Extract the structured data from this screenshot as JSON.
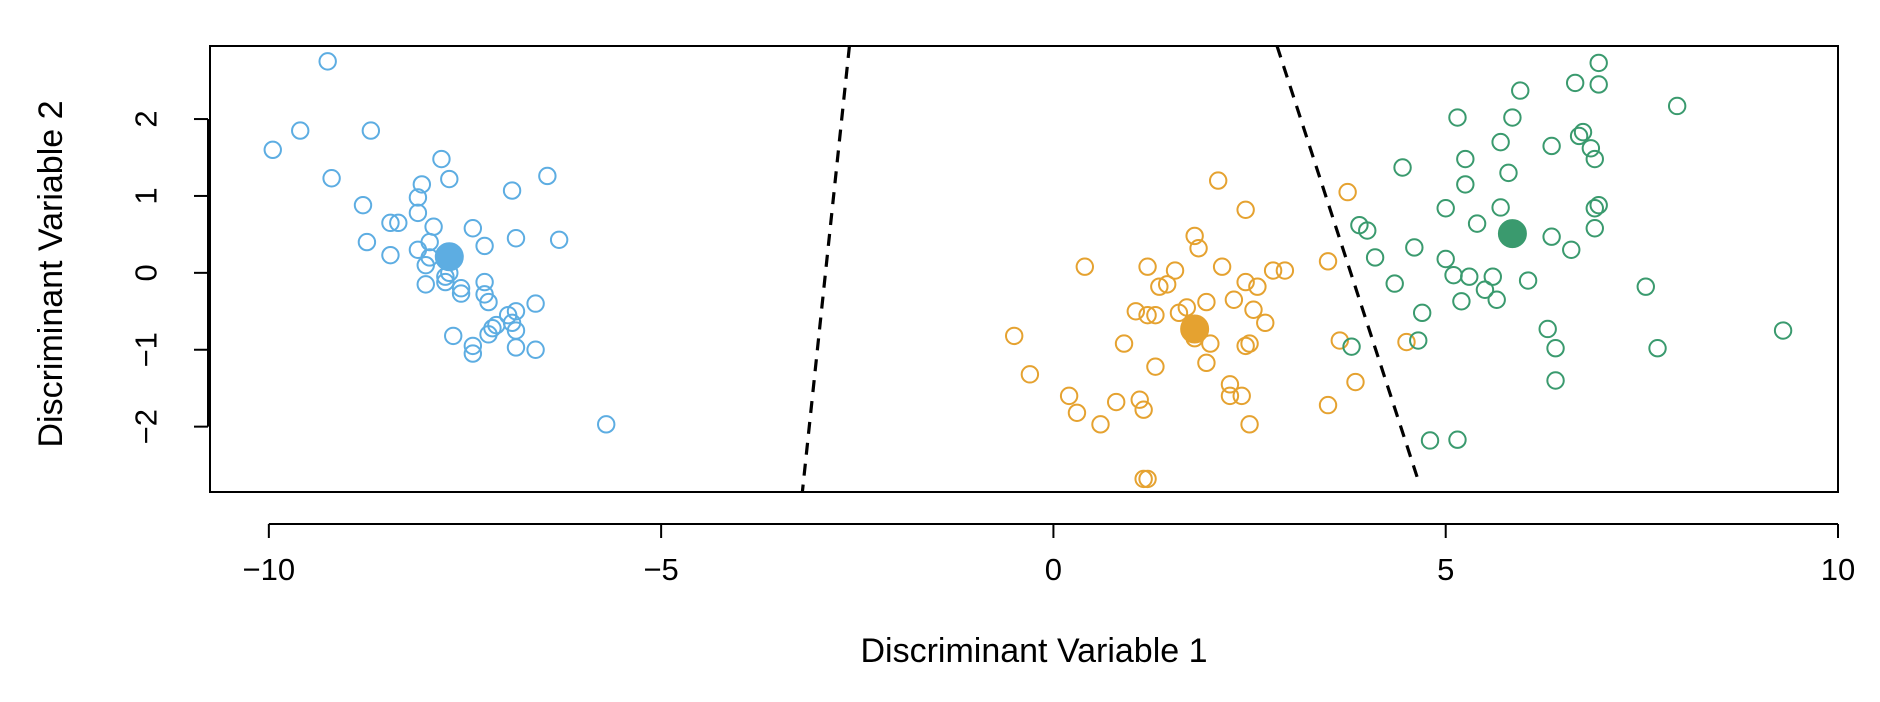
{
  "chart_data": {
    "type": "scatter",
    "xlabel": "Discriminant Variable 1",
    "ylabel": "Discriminant Variable 2",
    "xlim": [
      -10.75,
      10
    ],
    "ylim": [
      -2.85,
      2.95
    ],
    "xticks": [
      -10,
      -5,
      0,
      5,
      10
    ],
    "yticks": [
      -2,
      -1,
      0,
      1,
      2
    ],
    "xtick_labels": [
      "−10",
      "−5",
      "0",
      "5",
      "10"
    ],
    "ytick_labels": [
      "−2",
      "−1",
      "0",
      "1",
      "2"
    ],
    "grid": false,
    "series": [
      {
        "color": "#5DADE2",
        "marker": "open-circle",
        "points": [
          [
            -9.25,
            2.75
          ],
          [
            -9.6,
            1.85
          ],
          [
            -8.7,
            1.85
          ],
          [
            -9.95,
            1.6
          ],
          [
            -9.2,
            1.23
          ],
          [
            -7.8,
            1.48
          ],
          [
            -7.7,
            1.22
          ],
          [
            -6.9,
            1.07
          ],
          [
            -6.45,
            1.26
          ],
          [
            -8.05,
            1.15
          ],
          [
            -8.1,
            0.98
          ],
          [
            -8.8,
            0.88
          ],
          [
            -8.45,
            0.65
          ],
          [
            -8.35,
            0.65
          ],
          [
            -8.1,
            0.78
          ],
          [
            -7.9,
            0.6
          ],
          [
            -7.4,
            0.58
          ],
          [
            -7.95,
            0.4
          ],
          [
            -8.75,
            0.4
          ],
          [
            -6.85,
            0.45
          ],
          [
            -6.3,
            0.43
          ],
          [
            -7.25,
            0.35
          ],
          [
            -8.1,
            0.3
          ],
          [
            -8.45,
            0.23
          ],
          [
            -7.95,
            0.2
          ],
          [
            -8.0,
            0.1
          ],
          [
            -7.7,
            0.0
          ],
          [
            -7.75,
            -0.05
          ],
          [
            -7.75,
            -0.12
          ],
          [
            -8.0,
            -0.15
          ],
          [
            -7.25,
            -0.12
          ],
          [
            -7.55,
            -0.2
          ],
          [
            -7.55,
            -0.27
          ],
          [
            -7.25,
            -0.28
          ],
          [
            -7.2,
            -0.38
          ],
          [
            -6.6,
            -0.4
          ],
          [
            -6.95,
            -0.55
          ],
          [
            -6.85,
            -0.5
          ],
          [
            -6.9,
            -0.65
          ],
          [
            -7.1,
            -0.68
          ],
          [
            -7.15,
            -0.72
          ],
          [
            -6.85,
            -0.75
          ],
          [
            -7.2,
            -0.8
          ],
          [
            -7.65,
            -0.82
          ],
          [
            -7.4,
            -0.95
          ],
          [
            -6.85,
            -0.97
          ],
          [
            -6.6,
            -1.0
          ],
          [
            -7.4,
            -1.05
          ],
          [
            -5.7,
            -1.97
          ]
        ],
        "centroid": [
          -7.7,
          0.21
        ]
      },
      {
        "color": "#E5A230",
        "marker": "open-circle",
        "points": [
          [
            2.1,
            1.2
          ],
          [
            2.45,
            0.82
          ],
          [
            3.75,
            1.05
          ],
          [
            1.8,
            0.48
          ],
          [
            1.85,
            0.32
          ],
          [
            0.4,
            0.08
          ],
          [
            1.2,
            0.08
          ],
          [
            1.55,
            0.03
          ],
          [
            2.15,
            0.08
          ],
          [
            2.8,
            0.03
          ],
          [
            2.95,
            0.03
          ],
          [
            3.5,
            0.15
          ],
          [
            1.35,
            -0.18
          ],
          [
            1.45,
            -0.15
          ],
          [
            2.45,
            -0.12
          ],
          [
            2.6,
            -0.18
          ],
          [
            2.3,
            -0.35
          ],
          [
            1.95,
            -0.38
          ],
          [
            1.6,
            -0.52
          ],
          [
            1.7,
            -0.45
          ],
          [
            1.05,
            -0.5
          ],
          [
            1.2,
            -0.55
          ],
          [
            1.3,
            -0.55
          ],
          [
            2.55,
            -0.48
          ],
          [
            2.7,
            -0.65
          ],
          [
            -0.5,
            -0.82
          ],
          [
            1.8,
            -0.85
          ],
          [
            2.0,
            -0.92
          ],
          [
            0.9,
            -0.92
          ],
          [
            2.45,
            -0.95
          ],
          [
            2.5,
            -0.92
          ],
          [
            3.65,
            -0.88
          ],
          [
            4.5,
            -0.9
          ],
          [
            1.3,
            -1.22
          ],
          [
            1.95,
            -1.17
          ],
          [
            -0.3,
            -1.32
          ],
          [
            2.25,
            -1.45
          ],
          [
            3.85,
            -1.42
          ],
          [
            0.2,
            -1.6
          ],
          [
            0.8,
            -1.68
          ],
          [
            1.1,
            -1.65
          ],
          [
            2.25,
            -1.6
          ],
          [
            2.4,
            -1.6
          ],
          [
            3.5,
            -1.72
          ],
          [
            0.3,
            -1.82
          ],
          [
            1.15,
            -1.78
          ],
          [
            0.6,
            -1.97
          ],
          [
            2.5,
            -1.97
          ],
          [
            1.15,
            -2.68
          ],
          [
            1.2,
            -2.68
          ]
        ],
        "centroid": [
          1.8,
          -0.73
        ]
      },
      {
        "color": "#3A9A6E",
        "marker": "open-circle",
        "points": [
          [
            6.95,
            2.73
          ],
          [
            6.95,
            2.45
          ],
          [
            6.65,
            2.47
          ],
          [
            5.95,
            2.37
          ],
          [
            7.95,
            2.17
          ],
          [
            5.15,
            2.02
          ],
          [
            5.85,
            2.02
          ],
          [
            6.75,
            1.83
          ],
          [
            6.7,
            1.78
          ],
          [
            5.7,
            1.7
          ],
          [
            6.35,
            1.65
          ],
          [
            6.85,
            1.62
          ],
          [
            6.9,
            1.48
          ],
          [
            5.25,
            1.48
          ],
          [
            4.45,
            1.37
          ],
          [
            5.8,
            1.3
          ],
          [
            5.25,
            1.15
          ],
          [
            6.95,
            0.88
          ],
          [
            6.9,
            0.84
          ],
          [
            5.0,
            0.84
          ],
          [
            5.7,
            0.85
          ],
          [
            5.4,
            0.64
          ],
          [
            3.9,
            0.62
          ],
          [
            4.0,
            0.55
          ],
          [
            6.9,
            0.58
          ],
          [
            6.35,
            0.47
          ],
          [
            4.6,
            0.33
          ],
          [
            6.6,
            0.3
          ],
          [
            4.1,
            0.2
          ],
          [
            5.0,
            0.18
          ],
          [
            5.1,
            -0.03
          ],
          [
            5.3,
            -0.05
          ],
          [
            5.6,
            -0.05
          ],
          [
            6.05,
            -0.1
          ],
          [
            4.35,
            -0.14
          ],
          [
            7.55,
            -0.18
          ],
          [
            5.5,
            -0.22
          ],
          [
            5.2,
            -0.37
          ],
          [
            5.65,
            -0.35
          ],
          [
            4.7,
            -0.52
          ],
          [
            6.3,
            -0.73
          ],
          [
            9.3,
            -0.75
          ],
          [
            4.65,
            -0.88
          ],
          [
            6.4,
            -0.98
          ],
          [
            7.7,
            -0.98
          ],
          [
            3.8,
            -0.96
          ],
          [
            6.4,
            -1.4
          ],
          [
            4.8,
            -2.18
          ],
          [
            5.15,
            -2.17
          ]
        ],
        "centroid": [
          5.85,
          0.51
        ]
      }
    ],
    "boundaries": [
      {
        "x": [
          -2.6,
          -3.2
        ],
        "y": [
          2.95,
          -2.85
        ],
        "style": "dashed"
      },
      {
        "x": [
          2.85,
          4.65
        ],
        "y": [
          2.95,
          -2.7
        ],
        "style": "dashed"
      }
    ]
  }
}
